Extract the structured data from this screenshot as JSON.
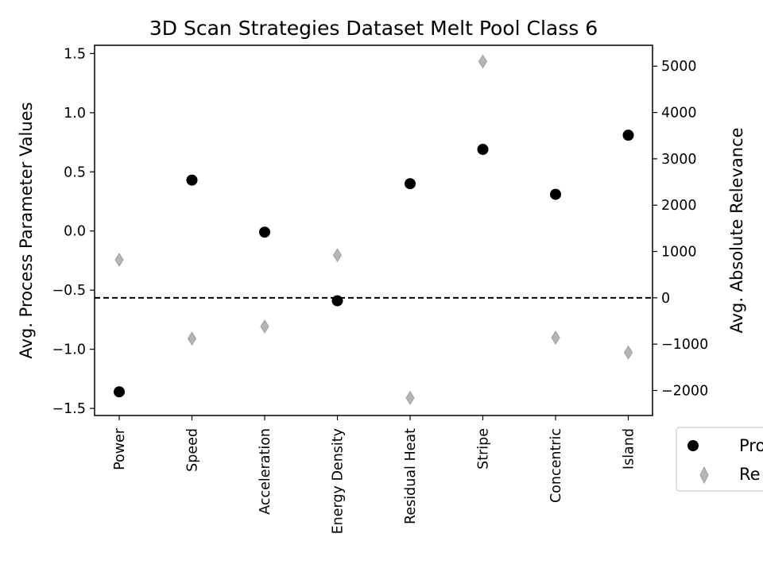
{
  "chart_data": {
    "type": "scatter",
    "title": "3D Scan Strategies Dataset Melt Pool Class 6",
    "categories": [
      "Power",
      "Speed",
      "Acceleration",
      "Energy Density",
      "Residual Heat",
      "Stripe",
      "Concentric",
      "Island"
    ],
    "y_left": {
      "label": "Avg. Process Parameter Values",
      "ylim": [
        -1.56,
        1.57
      ],
      "ticks": [
        -1.5,
        -1.0,
        -0.5,
        0.0,
        0.5,
        1.0,
        1.5
      ],
      "tick_labels": [
        "−1.5",
        "−1.0",
        "−0.5",
        "0.0",
        "0.5",
        "1.0",
        "1.5"
      ]
    },
    "y_right": {
      "label": "Avg. Absolute Relevance",
      "ylim": [
        -2540,
        5450
      ],
      "ticks": [
        -2000,
        -1000,
        0,
        1000,
        2000,
        3000,
        4000,
        5000
      ],
      "tick_labels": [
        "−2000",
        "−1000",
        "0",
        "1000",
        "2000",
        "3000",
        "4000",
        "5000"
      ]
    },
    "series": [
      {
        "name": "Pro",
        "axis": "left",
        "marker": "circle",
        "color": "#000000",
        "values": [
          -1.36,
          0.43,
          -0.01,
          -0.59,
          0.4,
          0.69,
          0.31,
          0.81
        ]
      },
      {
        "name": "Re",
        "axis": "right",
        "marker": "thin_diamond",
        "color": "#a9a9a9",
        "values": [
          820,
          -880,
          -620,
          920,
          -2160,
          5100,
          -860,
          -1180
        ]
      }
    ],
    "reference_line": {
      "axis": "right",
      "value": 0,
      "style": "dashed",
      "color": "#000000"
    },
    "grid": false,
    "legend_position": "outside-right"
  }
}
